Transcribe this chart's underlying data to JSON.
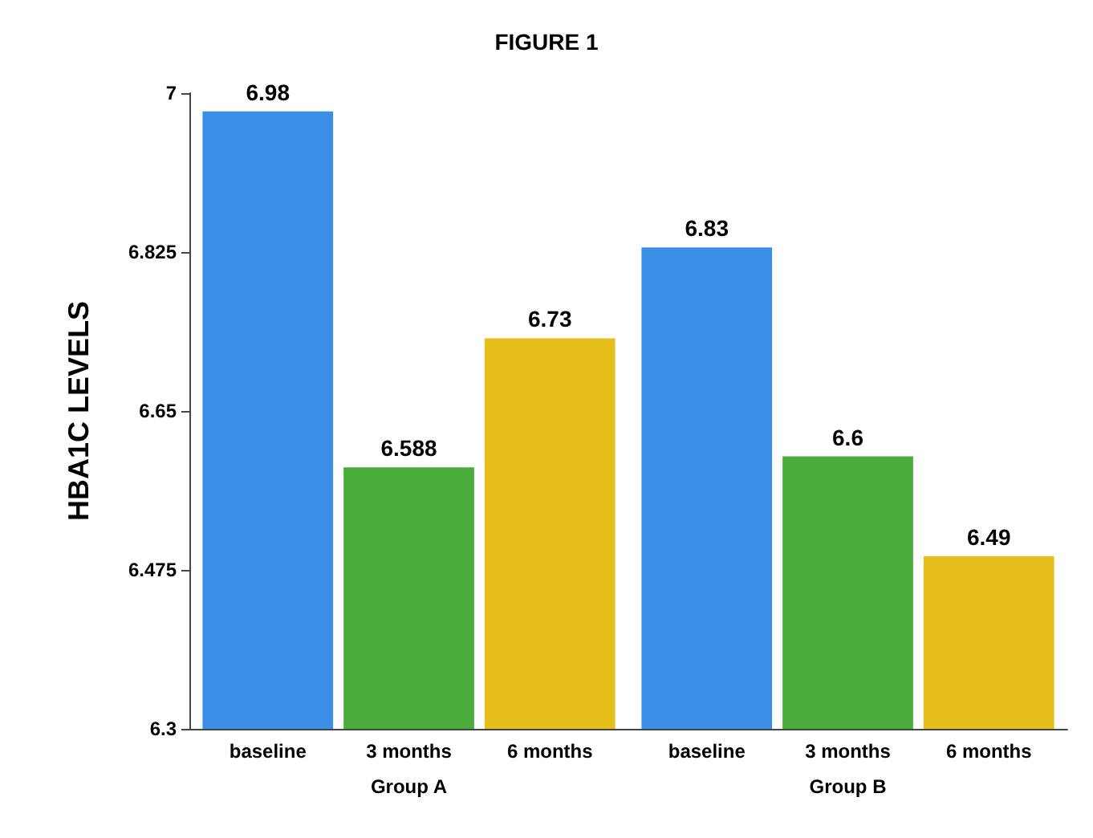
{
  "chart_data": {
    "type": "bar",
    "title": "FIGURE 1",
    "ylabel": "HBA1C LEVELS",
    "categories": [
      "Group A",
      "Group B"
    ],
    "series": [
      {
        "name": "baseline",
        "color": "#3a8ee6",
        "values": [
          6.98,
          6.83
        ]
      },
      {
        "name": "3 months",
        "color": "#4aac3a",
        "values": [
          6.588,
          6.6
        ]
      },
      {
        "name": "6 months",
        "color": "#e6bf1c",
        "values": [
          6.73,
          6.49
        ]
      }
    ],
    "ylim": [
      6.3,
      7
    ],
    "yticks": [
      6.3,
      6.475,
      6.65,
      6.825,
      7
    ],
    "grid": false,
    "legend": false,
    "data_labels": true
  }
}
